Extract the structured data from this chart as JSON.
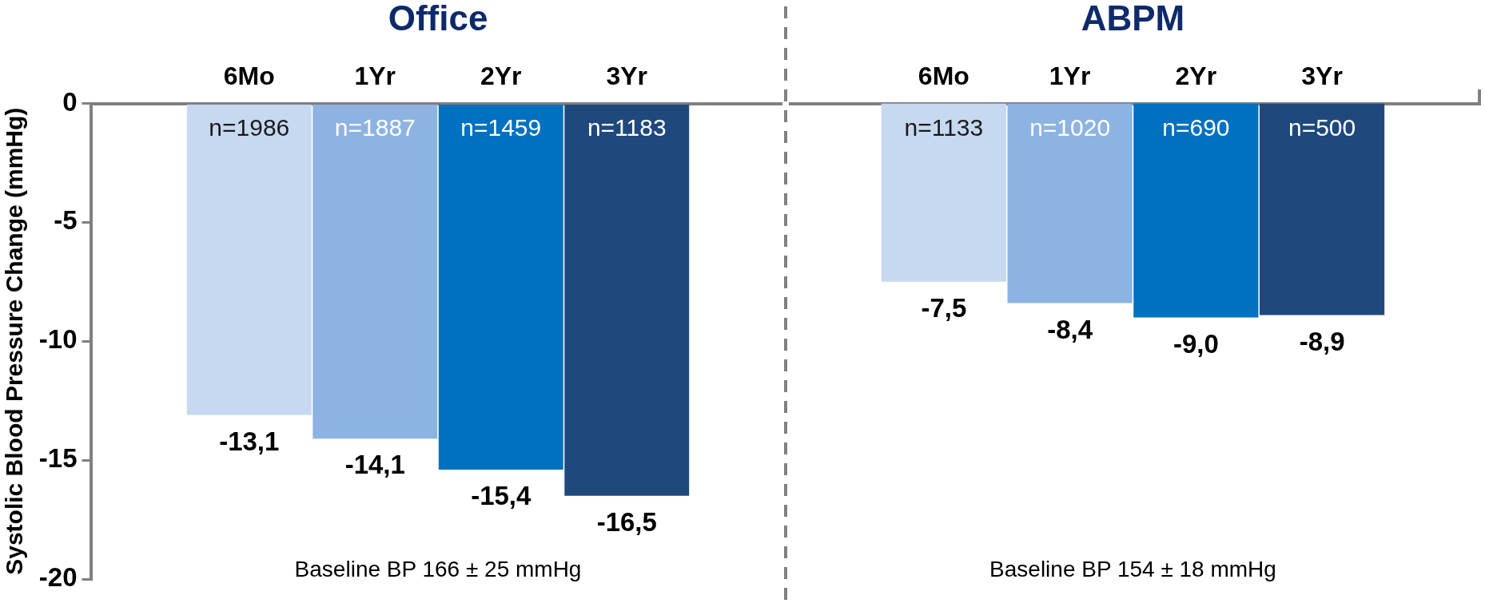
{
  "chart_data": [
    {
      "type": "bar",
      "title": "Office",
      "ylabel": "Systolic Blood Pressure Change (mmHg)",
      "categories": [
        "6Mo",
        "1Yr",
        "2Yr",
        "3Yr"
      ],
      "values": [
        -13.1,
        -14.1,
        -15.4,
        -16.5
      ],
      "colors": [
        "#c6d9f1",
        "#8db3e2",
        "#0070c0",
        "#1f497d"
      ],
      "value_labels": [
        "-13,1",
        "-14,1",
        "-15,4",
        "-16,5"
      ],
      "ylim": [
        -20,
        0
      ],
      "yticks": [
        -20,
        -15,
        -10,
        -5,
        0
      ],
      "annotations": [
        "n=1986",
        "n=1887",
        "n=1459",
        "n=1183",
        "Baseline BP 166 ± 25 mmHg"
      ]
    },
    {
      "type": "bar",
      "title": "ABPM",
      "categories": [
        "6Mo",
        "1Yr",
        "2Yr",
        "3Yr"
      ],
      "values": [
        -7.5,
        -8.4,
        -9.0,
        -8.9
      ],
      "colors": [
        "#c6d9f1",
        "#8db3e2",
        "#0070c0",
        "#1f497d"
      ],
      "value_labels": [
        "-7,5",
        "-8,4",
        "-9,0",
        "-8,9"
      ],
      "ylim": [
        -20,
        0
      ],
      "tick_labels": "x",
      "annotations": [
        "n=1133",
        "n=1020",
        "n=690",
        "n=500",
        "Baseline BP 154 ± 18 mmHg"
      ]
    }
  ]
}
